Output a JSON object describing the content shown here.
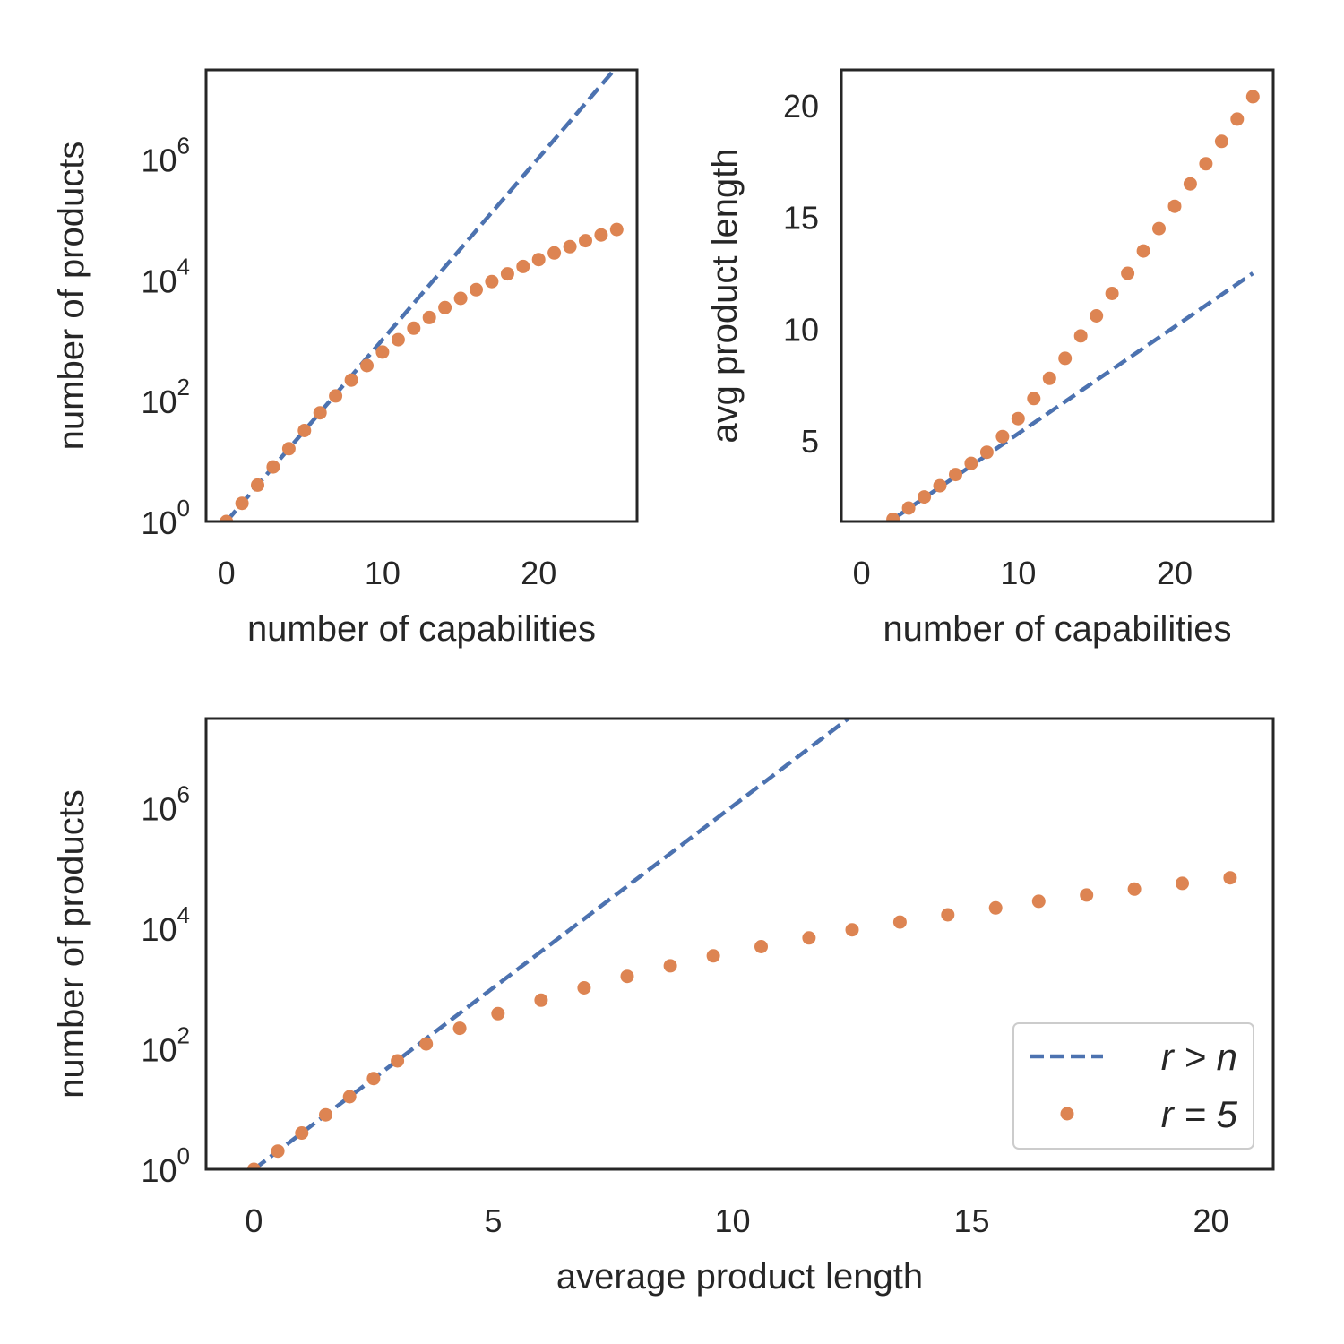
{
  "colors": {
    "series_rn": "#4c72b0",
    "series_r5": "#dd8452",
    "frame": "#262626"
  },
  "chart_data": [
    {
      "id": "top-left",
      "type": "line",
      "xlabel": "number of capabilities",
      "ylabel": "number of products",
      "yscale": "log",
      "xlim": [
        -1.3,
        26.3
      ],
      "ylim": [
        1,
        30000000
      ],
      "xticks": [
        0,
        10,
        20
      ],
      "yticks": [
        {
          "base": "10",
          "exp": "0",
          "value": 1
        },
        {
          "base": "10",
          "exp": "2",
          "value": 100
        },
        {
          "base": "10",
          "exp": "4",
          "value": 10000
        },
        {
          "base": "10",
          "exp": "6",
          "value": 1000000
        }
      ],
      "grid": false,
      "series": [
        {
          "key": "rn",
          "style": "dashed",
          "x": [
            0,
            1,
            2,
            3,
            4,
            5,
            6,
            7,
            8,
            9,
            10,
            11,
            12,
            13,
            14,
            15,
            16,
            17,
            18,
            19,
            20,
            21,
            22,
            23,
            24,
            25
          ],
          "y": [
            1,
            2,
            4,
            8,
            16,
            32,
            64,
            128,
            256,
            512,
            1024,
            2048,
            4096,
            8192,
            16384,
            32768,
            65536,
            131072,
            262144,
            524288,
            1048576,
            2097152,
            4194304,
            8388608,
            16777216,
            33554432
          ]
        },
        {
          "key": "r5",
          "style": "dots",
          "x": [
            0,
            1,
            2,
            3,
            4,
            5,
            6,
            7,
            8,
            9,
            10,
            11,
            12,
            13,
            14,
            15,
            16,
            17,
            18,
            19,
            20,
            21,
            22,
            23,
            24,
            25
          ],
          "y": [
            1,
            2,
            4,
            8,
            16,
            32,
            63,
            120,
            219,
            382,
            638,
            1024,
            1586,
            2380,
            3473,
            4944,
            6885,
            9402,
            12616,
            16664,
            21700,
            27896,
            35443,
            44552,
            55455,
            68406
          ]
        }
      ]
    },
    {
      "id": "top-right",
      "type": "line",
      "xlabel": "number of capabilities",
      "ylabel": "avg product length",
      "yscale": "linear",
      "xlim": [
        -1.3,
        26.3
      ],
      "ylim": [
        1.4,
        21.6
      ],
      "xticks": [
        0,
        10,
        20
      ],
      "yticks": [
        5,
        10,
        15,
        20
      ],
      "grid": false,
      "series": [
        {
          "key": "rn",
          "style": "dashed",
          "x": [
            2,
            25
          ],
          "y": [
            1.5,
            12.5
          ]
        },
        {
          "key": "r5",
          "style": "dots",
          "x": [
            2,
            3,
            4,
            5,
            6,
            7,
            8,
            9,
            10,
            11,
            12,
            13,
            14,
            15,
            16,
            17,
            18,
            19,
            20,
            21,
            22,
            23,
            24,
            25
          ],
          "y": [
            1.5,
            2.0,
            2.5,
            3.0,
            3.5,
            4.0,
            4.5,
            5.2,
            6.0,
            6.9,
            7.8,
            8.7,
            9.7,
            10.6,
            11.6,
            12.5,
            13.5,
            14.5,
            15.5,
            16.5,
            17.4,
            18.4,
            19.4,
            20.4
          ]
        }
      ]
    },
    {
      "id": "bottom",
      "type": "line",
      "xlabel": "average product length",
      "ylabel": "number of products",
      "yscale": "log",
      "xlim": [
        -1,
        21.3
      ],
      "ylim": [
        1,
        30000000
      ],
      "xticks": [
        0,
        5,
        10,
        15,
        20
      ],
      "yticks": [
        {
          "base": "10",
          "exp": "0",
          "value": 1
        },
        {
          "base": "10",
          "exp": "2",
          "value": 100
        },
        {
          "base": "10",
          "exp": "4",
          "value": 10000
        },
        {
          "base": "10",
          "exp": "6",
          "value": 1000000
        }
      ],
      "grid": false,
      "legend": {
        "position": "lower-right",
        "entries": [
          {
            "key": "rn",
            "label": "r > n"
          },
          {
            "key": "r5",
            "label": "r = 5"
          }
        ]
      },
      "series": [
        {
          "key": "rn",
          "style": "dashed",
          "x": [
            0,
            12.5
          ],
          "y": [
            1,
            33554432
          ]
        },
        {
          "key": "r5",
          "style": "dots",
          "x": [
            0,
            0.5,
            1.0,
            1.5,
            2.0,
            2.5,
            3.0,
            3.6,
            4.3,
            5.1,
            6.0,
            6.9,
            7.8,
            8.7,
            9.6,
            10.6,
            11.6,
            12.5,
            13.5,
            14.5,
            15.5,
            16.4,
            17.4,
            18.4,
            19.4,
            20.4
          ],
          "y": [
            1,
            2,
            4,
            8,
            16,
            32,
            63,
            120,
            219,
            382,
            638,
            1024,
            1586,
            2380,
            3473,
            4944,
            6885,
            9402,
            12616,
            16664,
            21700,
            27896,
            35443,
            44552,
            55455,
            68406
          ]
        }
      ]
    }
  ]
}
